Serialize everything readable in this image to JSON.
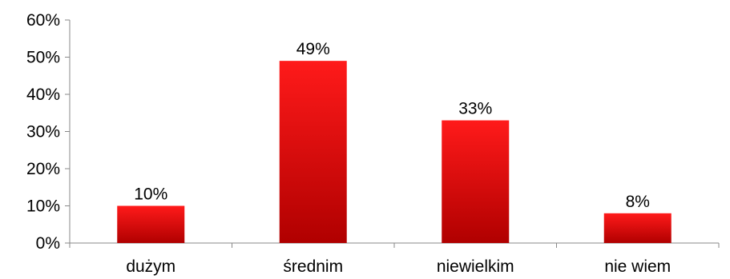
{
  "chart_data": {
    "type": "bar",
    "categories": [
      "dużym",
      "średnim",
      "niewielkim",
      "nie wiem"
    ],
    "values": [
      10,
      49,
      33,
      8
    ],
    "data_labels": [
      "10%",
      "49%",
      "33%",
      "8%"
    ],
    "title": "",
    "xlabel": "",
    "ylabel": "",
    "ylim": [
      0,
      60
    ],
    "yticks": [
      0,
      10,
      20,
      30,
      40,
      50,
      60
    ],
    "ytick_labels": [
      "0%",
      "10%",
      "20%",
      "30%",
      "40%",
      "50%",
      "60%"
    ],
    "grid": false,
    "legend": "none",
    "colors": {
      "bar_top": "#ff1a1a",
      "bar_bottom": "#b00000",
      "axis": "#888888"
    }
  }
}
